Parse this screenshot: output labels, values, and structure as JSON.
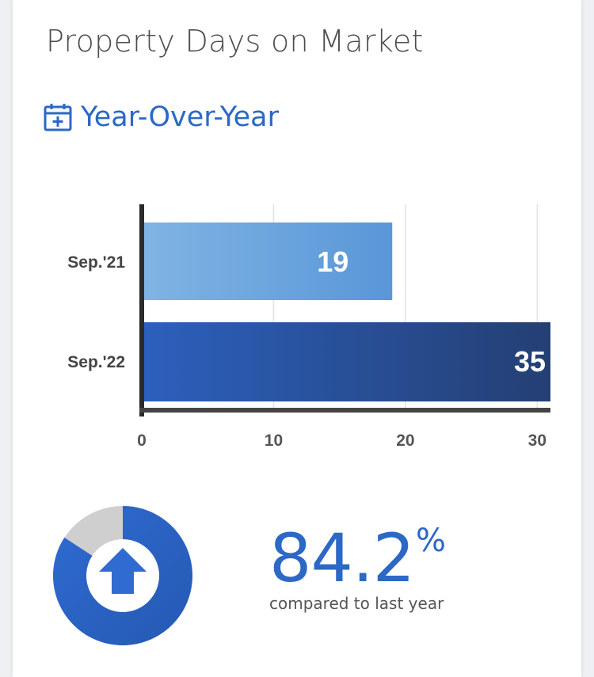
{
  "header": {
    "title": "Property Days on Market",
    "subtitle": "Year-Over-Year",
    "subtitle_icon": "calendar-plus-icon"
  },
  "chart_data": {
    "type": "bar",
    "orientation": "horizontal",
    "categories": [
      "Sep.'21",
      "Sep.'22"
    ],
    "values": [
      19,
      35
    ],
    "value_labels": [
      "19",
      "35"
    ],
    "xlim": [
      0,
      31
    ],
    "xticks": [
      "0",
      "10",
      "20",
      "30"
    ],
    "grid": true,
    "colors": [
      "#6aa3dc",
      "#2a56a8"
    ]
  },
  "summary": {
    "percent_value": "84.2",
    "percent_sign": "%",
    "caption": "compared to last year",
    "direction": "up",
    "indicator_icon": "arrow-up-icon",
    "donut_fraction": 0.842,
    "accent_color": "#2c68c5",
    "remainder_color": "#cfcfcf"
  }
}
